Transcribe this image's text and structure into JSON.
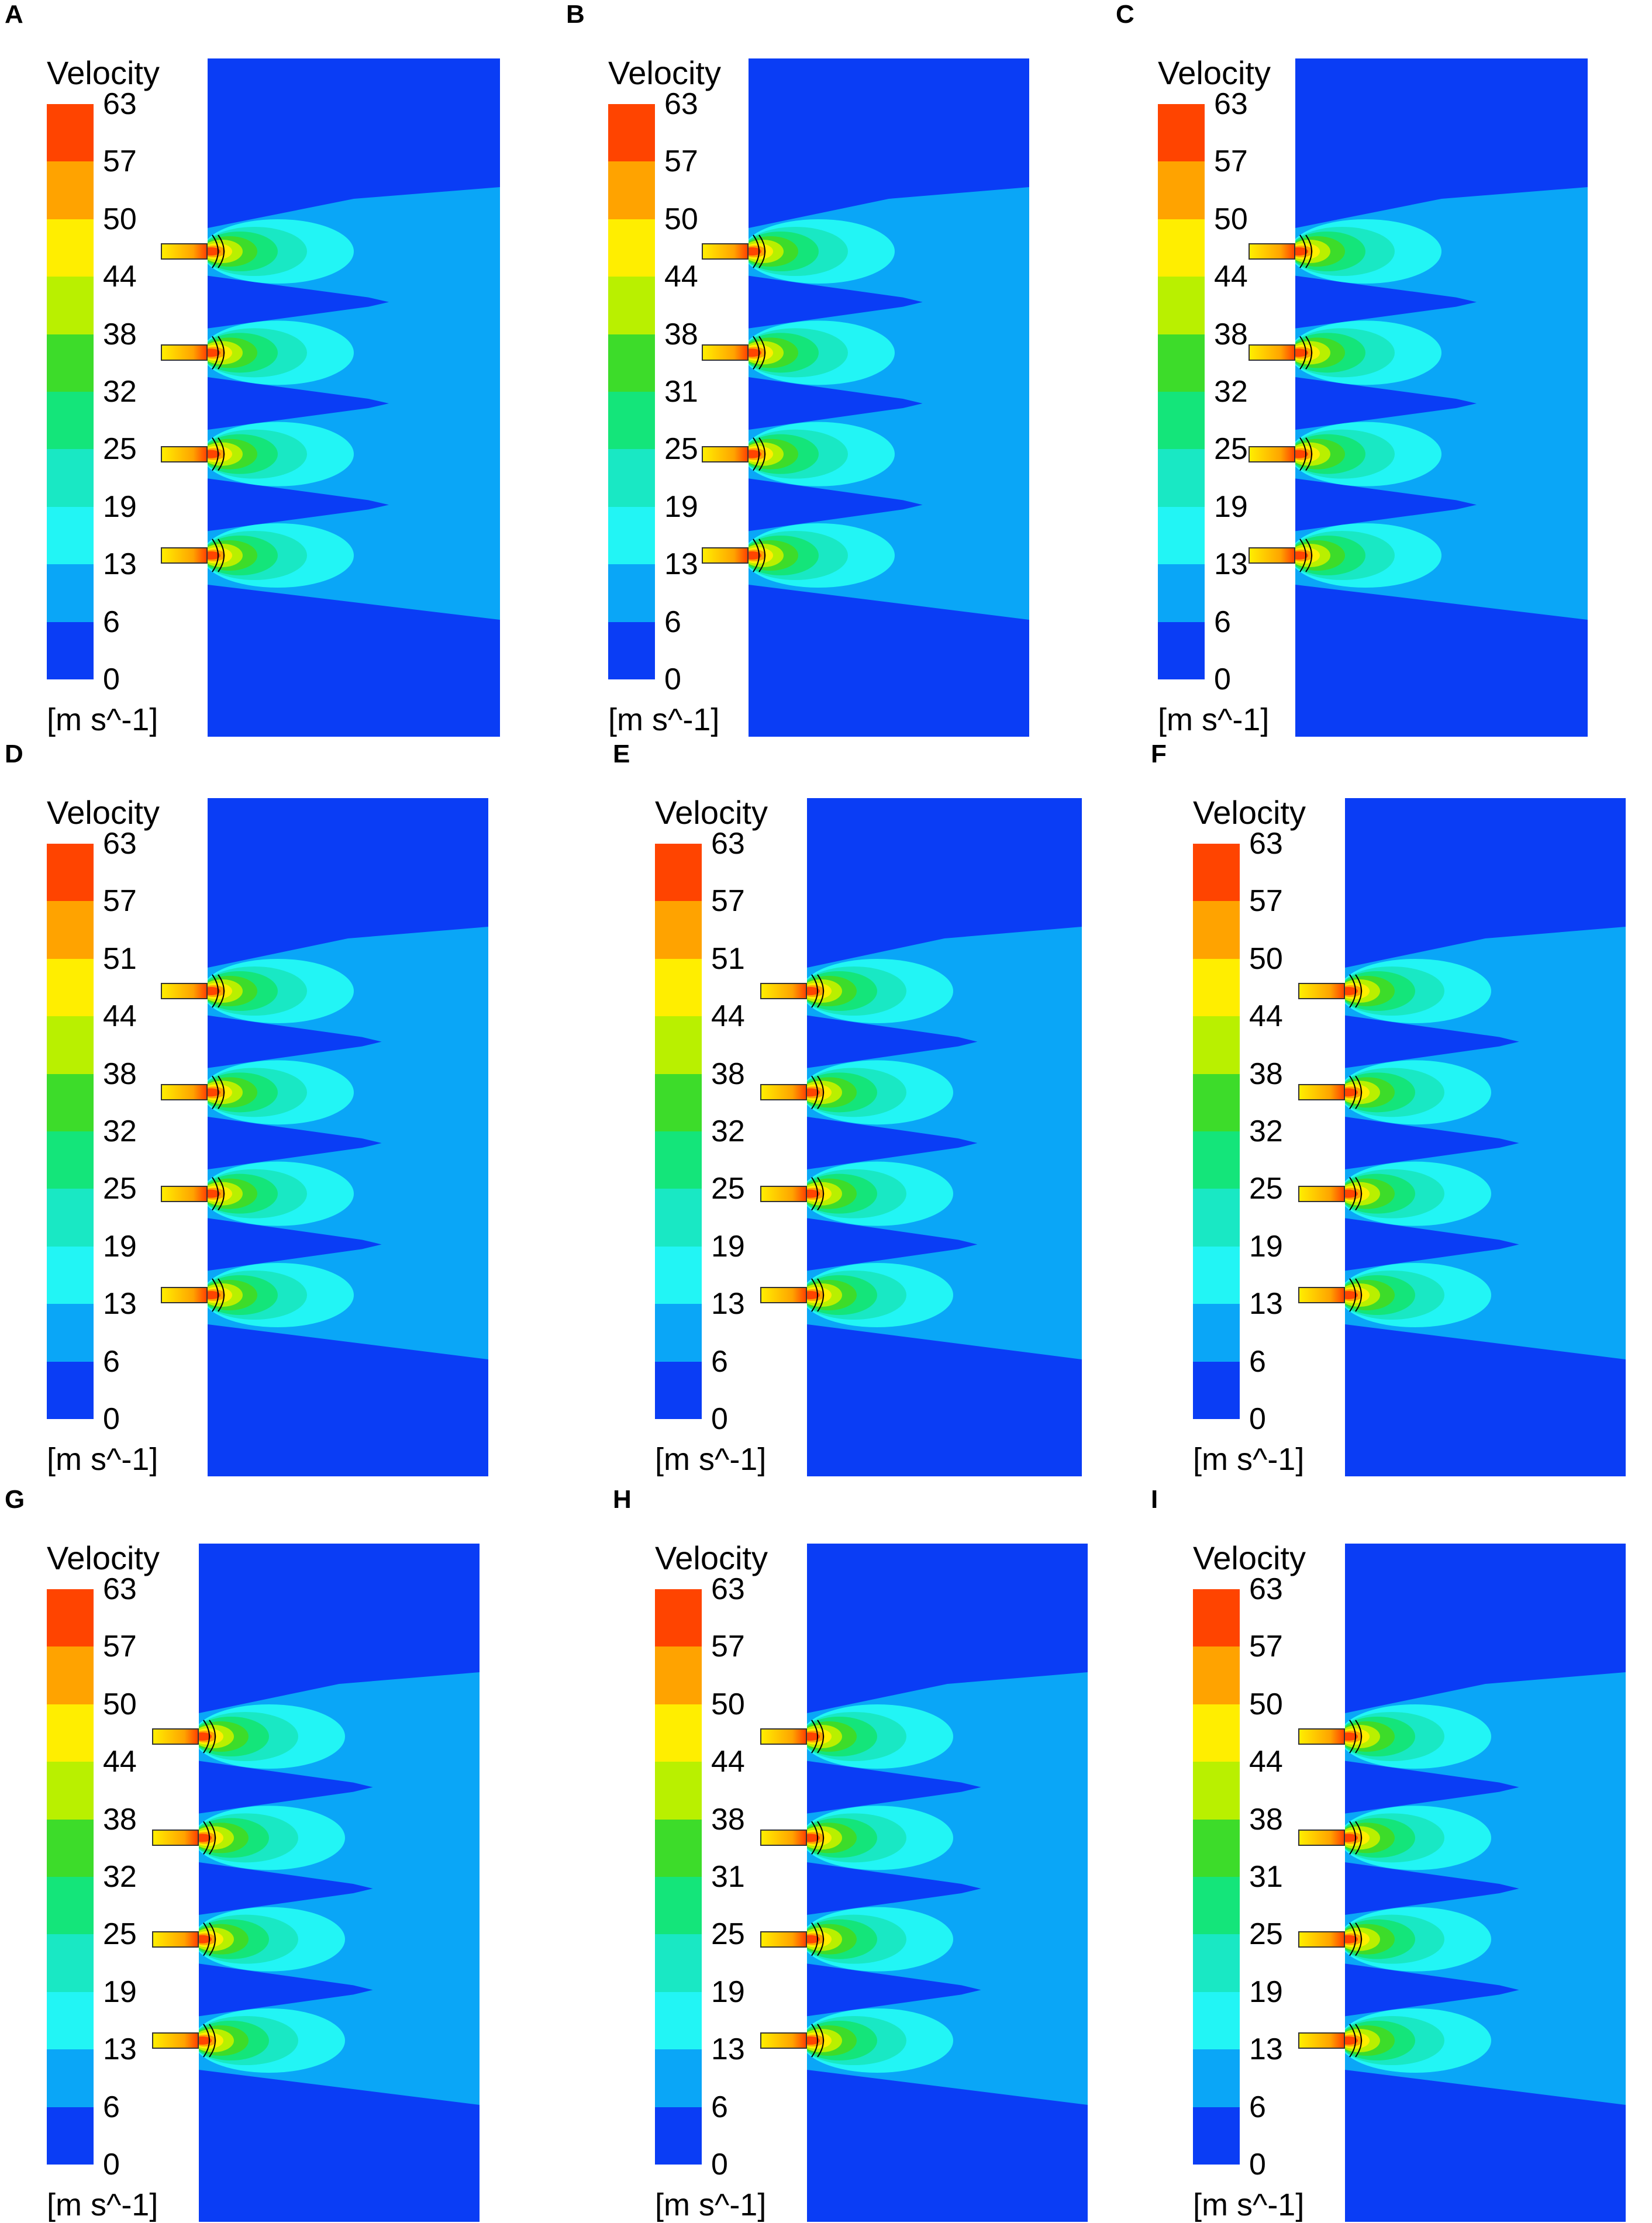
{
  "legend": {
    "title": "Velocity",
    "unit": "[m s^-1]",
    "band_colors": [
      "#ff4400",
      "#ffa300",
      "#ffee00",
      "#b9f000",
      "#3ddc2a",
      "#14e57a",
      "#19e8c4",
      "#22f5f5",
      "#0aa6f7",
      "#0a3df5"
    ]
  },
  "panels": [
    {
      "label": "A",
      "ticks": [
        "63",
        "57",
        "50",
        "44",
        "38",
        "32",
        "25",
        "19",
        "13",
        "6",
        "0"
      ],
      "nozzles": 4
    },
    {
      "label": "B",
      "ticks": [
        "63",
        "57",
        "50",
        "44",
        "38",
        "31",
        "25",
        "19",
        "13",
        "6",
        "0"
      ],
      "nozzles": 4
    },
    {
      "label": "C",
      "ticks": [
        "63",
        "57",
        "50",
        "44",
        "38",
        "32",
        "25",
        "19",
        "13",
        "6",
        "0"
      ],
      "nozzles": 4
    },
    {
      "label": "D",
      "ticks": [
        "63",
        "57",
        "51",
        "44",
        "38",
        "32",
        "25",
        "19",
        "13",
        "6",
        "0"
      ],
      "nozzles": 4
    },
    {
      "label": "E",
      "ticks": [
        "63",
        "57",
        "51",
        "44",
        "38",
        "32",
        "25",
        "19",
        "13",
        "6",
        "0"
      ],
      "nozzles": 4
    },
    {
      "label": "F",
      "ticks": [
        "63",
        "57",
        "50",
        "44",
        "38",
        "32",
        "25",
        "19",
        "13",
        "6",
        "0"
      ],
      "nozzles": 4
    },
    {
      "label": "G",
      "ticks": [
        "63",
        "57",
        "50",
        "44",
        "38",
        "32",
        "25",
        "19",
        "13",
        "6",
        "0"
      ],
      "nozzles": 4
    },
    {
      "label": "H",
      "ticks": [
        "63",
        "57",
        "50",
        "44",
        "38",
        "31",
        "25",
        "19",
        "13",
        "6",
        "0"
      ],
      "nozzles": 4
    },
    {
      "label": "I",
      "ticks": [
        "63",
        "57",
        "50",
        "44",
        "38",
        "31",
        "25",
        "19",
        "13",
        "6",
        "0"
      ],
      "nozzles": 4
    }
  ]
}
